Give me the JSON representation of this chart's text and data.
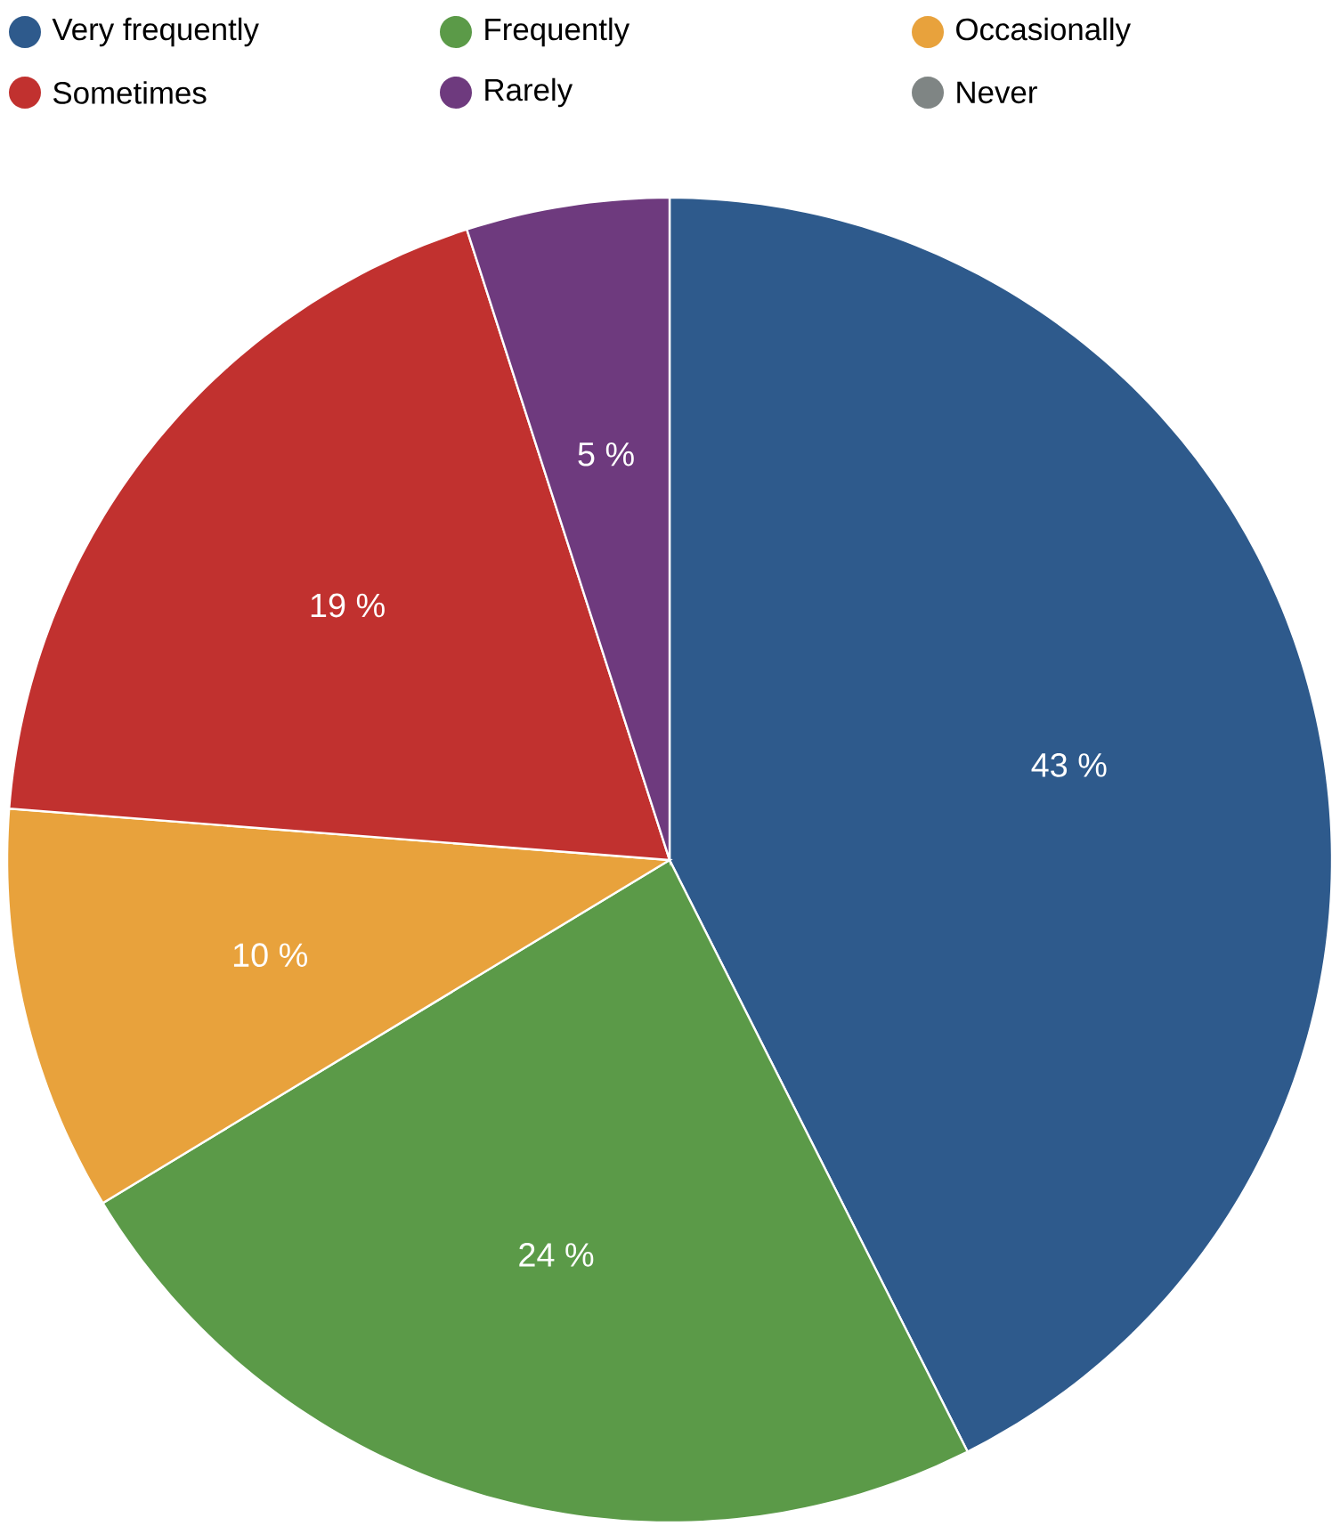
{
  "chart_data": {
    "type": "pie",
    "categories": [
      "Very frequently",
      "Frequently",
      "Occasionally",
      "Sometimes",
      "Rarely",
      "Never"
    ],
    "values": [
      43,
      24,
      10,
      19,
      5,
      0
    ],
    "colors": [
      "#2e5a8c",
      "#5b9a48",
      "#e8a23c",
      "#c1312f",
      "#6e3a7e",
      "#7f8584"
    ],
    "value_labels": [
      "43 %",
      "24 %",
      "10 %",
      "19 %",
      "5 %",
      null
    ],
    "legend": "top"
  }
}
